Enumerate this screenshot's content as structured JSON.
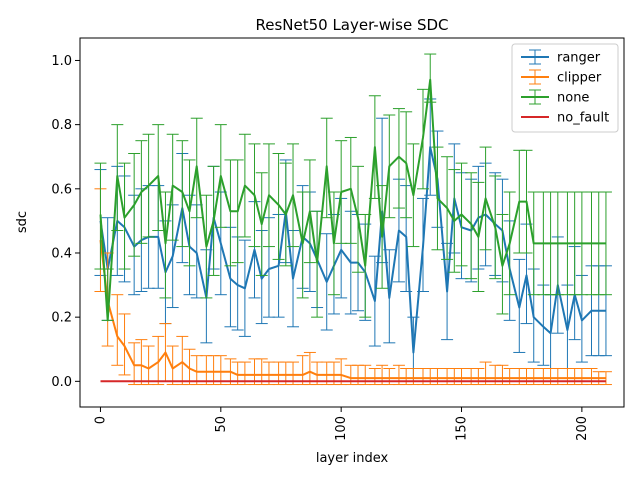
{
  "chart_data": {
    "type": "line",
    "title": "ResNet50 Layer-wise SDC",
    "xlabel": "layer index",
    "ylabel": "sdc",
    "xlim": [
      -8.5,
      217.5
    ],
    "ylim": [
      -0.08,
      1.07
    ],
    "x_ticks": [
      0,
      50,
      100,
      150,
      200
    ],
    "y_ticks": [
      0.0,
      0.2,
      0.4,
      0.6,
      0.8,
      1.0
    ],
    "x_tick_labels": [
      "0",
      "50",
      "100",
      "150",
      "200"
    ],
    "y_tick_labels": [
      "0.0",
      "0.2",
      "0.4",
      "0.6",
      "0.8",
      "1.0"
    ],
    "x_tick_rotation": 90,
    "grid": false,
    "legend_position": "top-right",
    "x": [
      0,
      3,
      7,
      10,
      14,
      17,
      20,
      24,
      27,
      30,
      34,
      37,
      40,
      44,
      47,
      50,
      54,
      57,
      60,
      64,
      67,
      70,
      74,
      77,
      80,
      84,
      87,
      90,
      94,
      97,
      100,
      104,
      107,
      110,
      114,
      117,
      120,
      124,
      127,
      130,
      134,
      137,
      140,
      144,
      147,
      150,
      154,
      157,
      160,
      164,
      167,
      170,
      174,
      177,
      180,
      184,
      187,
      190,
      194,
      197,
      200,
      204,
      207,
      210
    ],
    "series": [
      {
        "name": "ranger",
        "color": "#1f77b4",
        "values": [
          0.5,
          0.35,
          0.5,
          0.48,
          0.42,
          0.44,
          0.45,
          0.45,
          0.34,
          0.39,
          0.54,
          0.42,
          0.4,
          0.26,
          0.51,
          0.43,
          0.32,
          0.3,
          0.29,
          0.41,
          0.32,
          0.35,
          0.36,
          0.53,
          0.32,
          0.45,
          0.43,
          0.38,
          0.31,
          0.36,
          0.41,
          0.37,
          0.37,
          0.34,
          0.25,
          0.53,
          0.26,
          0.47,
          0.45,
          0.09,
          0.42,
          0.73,
          0.63,
          0.28,
          0.57,
          0.48,
          0.47,
          0.51,
          0.52,
          0.49,
          0.47,
          0.35,
          0.23,
          0.33,
          0.2,
          0.17,
          0.15,
          0.3,
          0.16,
          0.27,
          0.19,
          0.22,
          0.22,
          0.22
        ],
        "err_low": [
          0.33,
          0.19,
          0.33,
          0.31,
          0.27,
          0.28,
          0.29,
          0.29,
          0.18,
          0.23,
          0.37,
          0.27,
          0.26,
          0.12,
          0.35,
          0.27,
          0.17,
          0.16,
          0.14,
          0.26,
          0.18,
          0.2,
          0.2,
          0.37,
          0.17,
          0.29,
          0.28,
          0.23,
          0.16,
          0.21,
          0.26,
          0.21,
          0.22,
          0.19,
          0.11,
          0.37,
          0.12,
          0.31,
          0.28,
          0.0,
          0.28,
          0.58,
          0.48,
          0.13,
          0.4,
          0.32,
          0.31,
          0.35,
          0.36,
          0.33,
          0.31,
          0.19,
          0.09,
          0.18,
          0.06,
          0.05,
          0.04,
          0.15,
          0.04,
          0.13,
          0.06,
          0.08,
          0.08,
          0.08
        ],
        "err_high": [
          0.66,
          0.51,
          0.67,
          0.64,
          0.58,
          0.6,
          0.61,
          0.61,
          0.5,
          0.55,
          0.71,
          0.58,
          0.55,
          0.41,
          0.67,
          0.59,
          0.48,
          0.45,
          0.44,
          0.56,
          0.47,
          0.51,
          0.52,
          0.69,
          0.47,
          0.61,
          0.59,
          0.53,
          0.46,
          0.52,
          0.57,
          0.53,
          0.52,
          0.49,
          0.39,
          0.82,
          0.41,
          0.63,
          0.61,
          0.2,
          0.57,
          0.88,
          0.78,
          0.43,
          0.74,
          0.65,
          0.63,
          0.67,
          0.68,
          0.65,
          0.63,
          0.5,
          0.38,
          0.49,
          0.35,
          0.3,
          0.27,
          0.45,
          0.3,
          0.42,
          0.33,
          0.36,
          0.36,
          0.36
        ]
      },
      {
        "name": "clipper",
        "color": "#ff7f0e",
        "values": [
          0.44,
          0.25,
          0.14,
          0.11,
          0.05,
          0.05,
          0.04,
          0.06,
          0.09,
          0.04,
          0.06,
          0.04,
          0.03,
          0.03,
          0.03,
          0.03,
          0.03,
          0.02,
          0.02,
          0.02,
          0.02,
          0.02,
          0.02,
          0.02,
          0.02,
          0.02,
          0.03,
          0.02,
          0.02,
          0.02,
          0.02,
          0.01,
          0.01,
          0.01,
          0.01,
          0.01,
          0.01,
          0.01,
          0.01,
          0.01,
          0.01,
          0.01,
          0.01,
          0.01,
          0.01,
          0.01,
          0.01,
          0.01,
          0.01,
          0.01,
          0.01,
          0.01,
          0.01,
          0.01,
          0.01,
          0.01,
          0.01,
          0.01,
          0.01,
          0.01,
          0.01,
          0.01,
          0.01,
          0.01
        ],
        "err_low": [
          0.28,
          0.11,
          0.05,
          0.02,
          -0.01,
          -0.01,
          -0.01,
          -0.01,
          0.0,
          -0.01,
          -0.01,
          -0.01,
          -0.01,
          -0.01,
          -0.01,
          -0.01,
          -0.01,
          -0.01,
          -0.01,
          -0.01,
          -0.01,
          -0.01,
          -0.01,
          -0.01,
          -0.01,
          -0.01,
          -0.01,
          -0.01,
          -0.01,
          -0.01,
          -0.01,
          -0.01,
          -0.01,
          -0.01,
          -0.01,
          -0.01,
          -0.01,
          -0.01,
          -0.01,
          -0.01,
          -0.01,
          -0.01,
          -0.01,
          -0.01,
          -0.01,
          -0.01,
          -0.01,
          -0.01,
          -0.01,
          -0.01,
          -0.01,
          -0.01,
          -0.01,
          -0.01,
          -0.01,
          -0.01,
          -0.01,
          -0.01,
          -0.01,
          -0.01,
          -0.01,
          -0.01,
          -0.01,
          -0.01
        ],
        "err_high": [
          0.6,
          0.4,
          0.27,
          0.21,
          0.12,
          0.13,
          0.11,
          0.14,
          0.18,
          0.11,
          0.14,
          0.1,
          0.08,
          0.08,
          0.08,
          0.08,
          0.07,
          0.06,
          0.06,
          0.07,
          0.07,
          0.06,
          0.06,
          0.06,
          0.06,
          0.08,
          0.09,
          0.06,
          0.06,
          0.06,
          0.07,
          0.05,
          0.05,
          0.05,
          0.04,
          0.05,
          0.04,
          0.05,
          0.04,
          0.04,
          0.04,
          0.04,
          0.04,
          0.04,
          0.04,
          0.04,
          0.04,
          0.04,
          0.06,
          0.05,
          0.05,
          0.04,
          0.04,
          0.04,
          0.04,
          0.04,
          0.04,
          0.04,
          0.04,
          0.04,
          0.04,
          0.04,
          0.03,
          0.03
        ]
      },
      {
        "name": "none",
        "color": "#2ca02c",
        "values": [
          0.52,
          0.19,
          0.64,
          0.51,
          0.55,
          0.59,
          0.61,
          0.64,
          0.43,
          0.61,
          0.59,
          0.53,
          0.67,
          0.42,
          0.5,
          0.64,
          0.53,
          0.53,
          0.61,
          0.58,
          0.49,
          0.58,
          0.55,
          0.52,
          0.58,
          0.43,
          0.53,
          0.37,
          0.67,
          0.43,
          0.59,
          0.6,
          0.51,
          0.36,
          0.73,
          0.45,
          0.67,
          0.7,
          0.68,
          0.58,
          0.76,
          0.94,
          0.57,
          0.54,
          0.5,
          0.52,
          0.49,
          0.45,
          0.57,
          0.48,
          0.36,
          0.43,
          0.56,
          0.56,
          0.43,
          0.43,
          0.43,
          0.43,
          0.43,
          0.43,
          0.43,
          0.43,
          0.43,
          0.43
        ],
        "err_low": [
          0.35,
          0.19,
          0.47,
          0.35,
          0.39,
          0.43,
          0.45,
          0.47,
          0.26,
          0.44,
          0.42,
          0.36,
          0.51,
          0.26,
          0.33,
          0.48,
          0.36,
          0.37,
          0.45,
          0.42,
          0.33,
          0.42,
          0.38,
          0.36,
          0.42,
          0.26,
          0.37,
          0.2,
          0.51,
          0.27,
          0.43,
          0.43,
          0.34,
          0.2,
          0.57,
          0.29,
          0.51,
          0.54,
          0.51,
          0.42,
          0.6,
          0.87,
          0.41,
          0.38,
          0.34,
          0.36,
          0.32,
          0.28,
          0.41,
          0.32,
          0.21,
          0.27,
          0.4,
          0.4,
          0.27,
          0.27,
          0.27,
          0.27,
          0.27,
          0.27,
          0.27,
          0.27,
          0.27,
          0.27
        ],
        "err_high": [
          0.68,
          0.35,
          0.8,
          0.68,
          0.71,
          0.75,
          0.77,
          0.8,
          0.59,
          0.77,
          0.75,
          0.69,
          0.82,
          0.58,
          0.67,
          0.8,
          0.69,
          0.69,
          0.77,
          0.74,
          0.65,
          0.74,
          0.71,
          0.68,
          0.74,
          0.59,
          0.69,
          0.53,
          0.82,
          0.59,
          0.75,
          0.76,
          0.67,
          0.52,
          0.89,
          0.61,
          0.83,
          0.85,
          0.84,
          0.74,
          0.91,
          1.02,
          0.73,
          0.7,
          0.66,
          0.68,
          0.65,
          0.62,
          0.73,
          0.64,
          0.52,
          0.59,
          0.72,
          0.72,
          0.59,
          0.59,
          0.59,
          0.59,
          0.59,
          0.59,
          0.59,
          0.59,
          0.59,
          0.59
        ]
      },
      {
        "name": "no_fault",
        "color": "#d62728",
        "values": [
          0.0,
          0.0,
          0.0,
          0.0,
          0.0,
          0.0,
          0.0,
          0.0,
          0.0,
          0.0,
          0.0,
          0.0,
          0.0,
          0.0,
          0.0,
          0.0,
          0.0,
          0.0,
          0.0,
          0.0,
          0.0,
          0.0,
          0.0,
          0.0,
          0.0,
          0.0,
          0.0,
          0.0,
          0.0,
          0.0,
          0.0,
          0.0,
          0.0,
          0.0,
          0.0,
          0.0,
          0.0,
          0.0,
          0.0,
          0.0,
          0.0,
          0.0,
          0.0,
          0.0,
          0.0,
          0.0,
          0.0,
          0.0,
          0.0,
          0.0,
          0.0,
          0.0,
          0.0,
          0.0,
          0.0,
          0.0,
          0.0,
          0.0,
          0.0,
          0.0,
          0.0,
          0.0,
          0.0,
          0.0
        ]
      }
    ]
  }
}
